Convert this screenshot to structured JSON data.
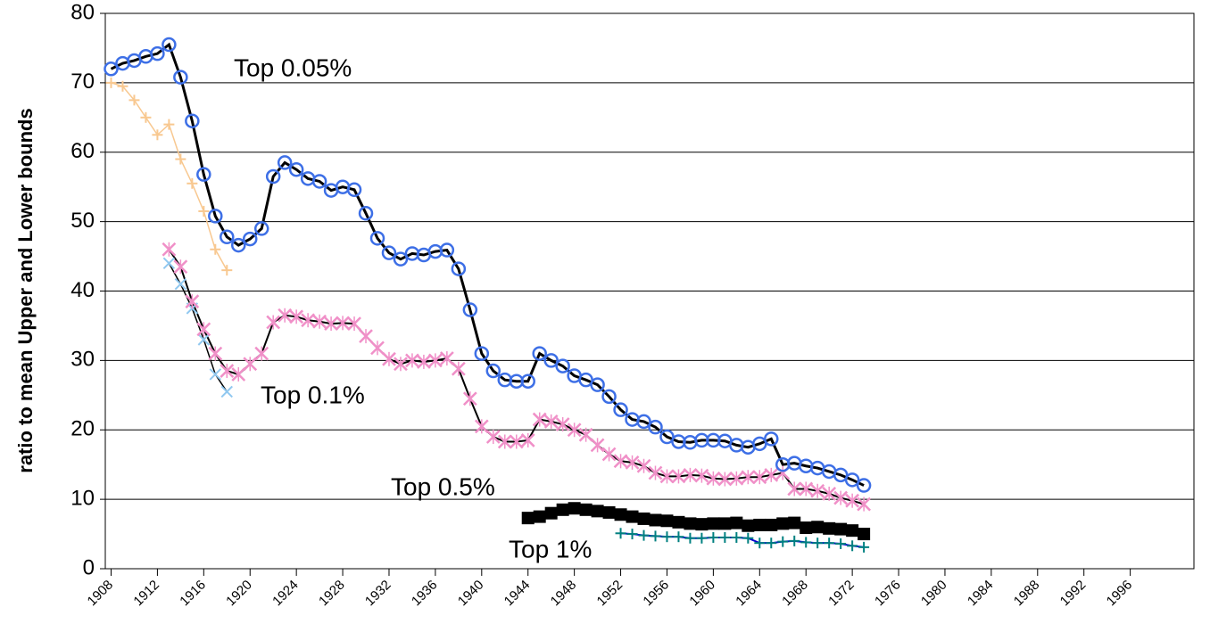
{
  "chart_data": {
    "type": "line",
    "y_label": "ratio to mean Upper and Lower bounds",
    "annotations": [
      "Top 0.05%",
      "Top 0.1%",
      "Top 0.5%",
      "Top 1%"
    ],
    "xlim": [
      1907.5,
      2001.5
    ],
    "xticks": [
      1908,
      1912,
      1916,
      1920,
      1924,
      1928,
      1932,
      1936,
      1940,
      1944,
      1948,
      1952,
      1956,
      1960,
      1964,
      1968,
      1972,
      1976,
      1980,
      1984,
      1988,
      1992,
      1996
    ],
    "ylim": [
      0,
      80
    ],
    "yticks": [
      0,
      10,
      20,
      30,
      40,
      50,
      60,
      70,
      80
    ],
    "grid": true,
    "series": [
      {
        "marker": "circle",
        "marker_color": "#3d6fe6",
        "line_color": "#000000",
        "x": [
          1908,
          1909,
          1910,
          1911,
          1912,
          1913,
          1914,
          1915,
          1916,
          1917,
          1918,
          1919,
          1920,
          1921,
          1922,
          1923,
          1924,
          1925,
          1926,
          1927,
          1928,
          1929,
          1930,
          1931,
          1932,
          1933,
          1934,
          1935,
          1936,
          1937,
          1938,
          1939,
          1940,
          1941,
          1942,
          1943,
          1944,
          1945,
          1946,
          1947,
          1948,
          1949,
          1950,
          1951,
          1952,
          1953,
          1954,
          1955,
          1956,
          1957,
          1958,
          1959,
          1960,
          1961,
          1962,
          1963,
          1964,
          1965,
          1966,
          1967,
          1968,
          1969,
          1970,
          1971,
          1972,
          1973
        ],
        "values": [
          72,
          72.8,
          73.2,
          73.8,
          74.2,
          75.5,
          70.8,
          64.5,
          56.8,
          50.8,
          47.8,
          46.6,
          47.5,
          49,
          56.5,
          58.5,
          57.5,
          56.2,
          55.8,
          54.5,
          55,
          54.6,
          51.2,
          47.6,
          45.5,
          44.6,
          45.4,
          45.2,
          45.7,
          45.9,
          43.2,
          37.3,
          31,
          28.5,
          27.2,
          27,
          27,
          31,
          30,
          29.2,
          27.8,
          27.2,
          26.5,
          24.8,
          22.9,
          21.5,
          21.2,
          20.4,
          19,
          18.3,
          18.2,
          18.5,
          18.5,
          18.4,
          17.8,
          17.5,
          18,
          18.7,
          15,
          15.2,
          14.8,
          14.5,
          14,
          13.5,
          12.8,
          12
        ]
      },
      {
        "marker": "plus",
        "marker_color": "#f8c890",
        "line_color": "#f8c890",
        "x": [
          1908,
          1909,
          1910,
          1911,
          1912,
          1913,
          1914,
          1915,
          1916,
          1917,
          1918
        ],
        "values": [
          70,
          69.5,
          67.5,
          65,
          62.5,
          64,
          59,
          55.5,
          51.5,
          46,
          43
        ]
      },
      {
        "marker": "star",
        "marker_color": "#f090c8",
        "line_color": "#000000",
        "x": [
          1913,
          1914,
          1915,
          1916,
          1917,
          1918,
          1919,
          1920,
          1921,
          1922,
          1923,
          1924,
          1925,
          1926,
          1927,
          1928,
          1929,
          1930,
          1931,
          1932,
          1933,
          1934,
          1935,
          1936,
          1937,
          1938,
          1939,
          1940,
          1941,
          1942,
          1943,
          1944,
          1945,
          1946,
          1947,
          1948,
          1949,
          1950,
          1951,
          1952,
          1953,
          1954,
          1955,
          1956,
          1957,
          1958,
          1959,
          1960,
          1961,
          1962,
          1963,
          1964,
          1965,
          1966,
          1967,
          1968,
          1969,
          1970,
          1971,
          1972,
          1973
        ],
        "values": [
          46,
          43.5,
          38.5,
          34.5,
          31,
          28.5,
          28,
          29.5,
          31,
          35.5,
          36.5,
          36.3,
          35.8,
          35.6,
          35.3,
          35.4,
          35.3,
          33.5,
          31.8,
          30.2,
          29.5,
          30,
          29.8,
          30,
          30.3,
          28.8,
          24.5,
          20.5,
          19,
          18.3,
          18.3,
          18.5,
          21.5,
          21.2,
          20.8,
          20,
          19.3,
          17.8,
          16.5,
          15.5,
          15.3,
          14.8,
          13.8,
          13.3,
          13.3,
          13.5,
          13.4,
          13,
          12.9,
          13,
          13.2,
          13.2,
          13.5,
          13.8,
          11.5,
          11.5,
          11.2,
          10.8,
          10.2,
          9.8,
          9.3
        ]
      },
      {
        "marker": "x",
        "marker_color": "#90c8f0",
        "line_color": "#000000",
        "x": [
          1913,
          1914,
          1915,
          1916,
          1917,
          1918
        ],
        "values": [
          44,
          41,
          37.5,
          33,
          28,
          25.5
        ]
      },
      {
        "marker": "square",
        "marker_color": "#000000",
        "line_color": "#000000",
        "x": [
          1944,
          1945,
          1946,
          1947,
          1948,
          1949,
          1950,
          1951,
          1952,
          1953,
          1954,
          1955,
          1956,
          1957,
          1958,
          1959,
          1960,
          1961,
          1962,
          1963,
          1964,
          1965,
          1966,
          1967,
          1968,
          1969,
          1970,
          1971,
          1972,
          1973
        ],
        "values": [
          7.3,
          7.5,
          8,
          8.5,
          8.7,
          8.5,
          8.3,
          8.1,
          7.8,
          7.5,
          7.2,
          7,
          6.9,
          6.7,
          6.5,
          6.4,
          6.5,
          6.5,
          6.6,
          6.2,
          6.3,
          6.3,
          6.5,
          6.6,
          5.9,
          6,
          5.8,
          5.7,
          5.5,
          5
        ]
      },
      {
        "marker": "plus",
        "marker_color": "#008080",
        "line_color": "#0000cc",
        "x": [
          1952,
          1953,
          1954,
          1955,
          1956,
          1957,
          1958,
          1959,
          1960,
          1961,
          1962,
          1963,
          1964,
          1965,
          1966,
          1967,
          1968,
          1969,
          1970,
          1971,
          1972,
          1973
        ],
        "values": [
          5.1,
          5,
          4.8,
          4.7,
          4.6,
          4.6,
          4.4,
          4.4,
          4.5,
          4.5,
          4.5,
          4.4,
          3.7,
          3.7,
          3.9,
          4,
          3.8,
          3.7,
          3.7,
          3.6,
          3.3,
          3.1
        ]
      }
    ]
  }
}
